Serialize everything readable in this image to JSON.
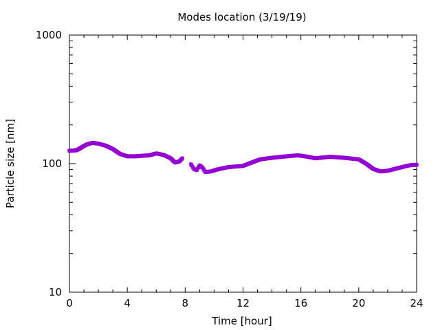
{
  "chart_data": {
    "type": "scatter",
    "title": "Modes location (3/19/19)",
    "xlabel": "Time [hour]",
    "ylabel": "Particle size [nm]",
    "xlim": [
      0,
      24
    ],
    "ylim": [
      10,
      1000
    ],
    "yscale": "log",
    "x_ticks": [
      0,
      4,
      8,
      12,
      16,
      20,
      24
    ],
    "x_tick_labels": [
      "0",
      "4",
      "8",
      "12",
      "16",
      "20",
      "24"
    ],
    "y_ticks": [
      10,
      100,
      1000
    ],
    "y_tick_labels": [
      "10",
      "100",
      "1000"
    ],
    "grid": false,
    "legend": "none",
    "series_color": "#9400d3",
    "series": [
      {
        "segments": [
          [
            [
              0,
              126
            ],
            [
              0.5,
              127
            ],
            [
              0.8,
              133
            ],
            [
              1.2,
              141
            ],
            [
              1.6,
              145
            ],
            [
              2.0,
              143
            ],
            [
              2.5,
              138
            ],
            [
              3.0,
              130
            ],
            [
              3.5,
              119
            ],
            [
              4.0,
              114
            ],
            [
              4.5,
              114
            ],
            [
              5.0,
              115
            ],
            [
              5.5,
              116
            ],
            [
              6.0,
              120
            ],
            [
              6.5,
              117
            ],
            [
              7.0,
              110
            ],
            [
              7.3,
              102
            ],
            [
              7.6,
              104
            ],
            [
              7.8,
              110
            ]
          ],
          [
            [
              8.4,
              99
            ],
            [
              8.6,
              91
            ],
            [
              8.8,
              89
            ],
            [
              9.0,
              97
            ],
            [
              9.2,
              93
            ],
            [
              9.4,
              86
            ],
            [
              9.8,
              87
            ],
            [
              10.2,
              90
            ],
            [
              11.0,
              94
            ],
            [
              12.0,
              96
            ],
            [
              12.6,
              102
            ],
            [
              13.2,
              108
            ],
            [
              14.0,
              111
            ],
            [
              15.0,
              114
            ],
            [
              15.8,
              116
            ],
            [
              16.5,
              113
            ],
            [
              17.0,
              110
            ],
            [
              18.0,
              113
            ],
            [
              19.0,
              111
            ],
            [
              20.0,
              108
            ],
            [
              20.5,
              100
            ],
            [
              21.0,
              91
            ],
            [
              21.5,
              87
            ],
            [
              22.0,
              88
            ],
            [
              23.0,
              94
            ],
            [
              23.5,
              97
            ],
            [
              24.0,
              98
            ]
          ]
        ]
      }
    ]
  }
}
